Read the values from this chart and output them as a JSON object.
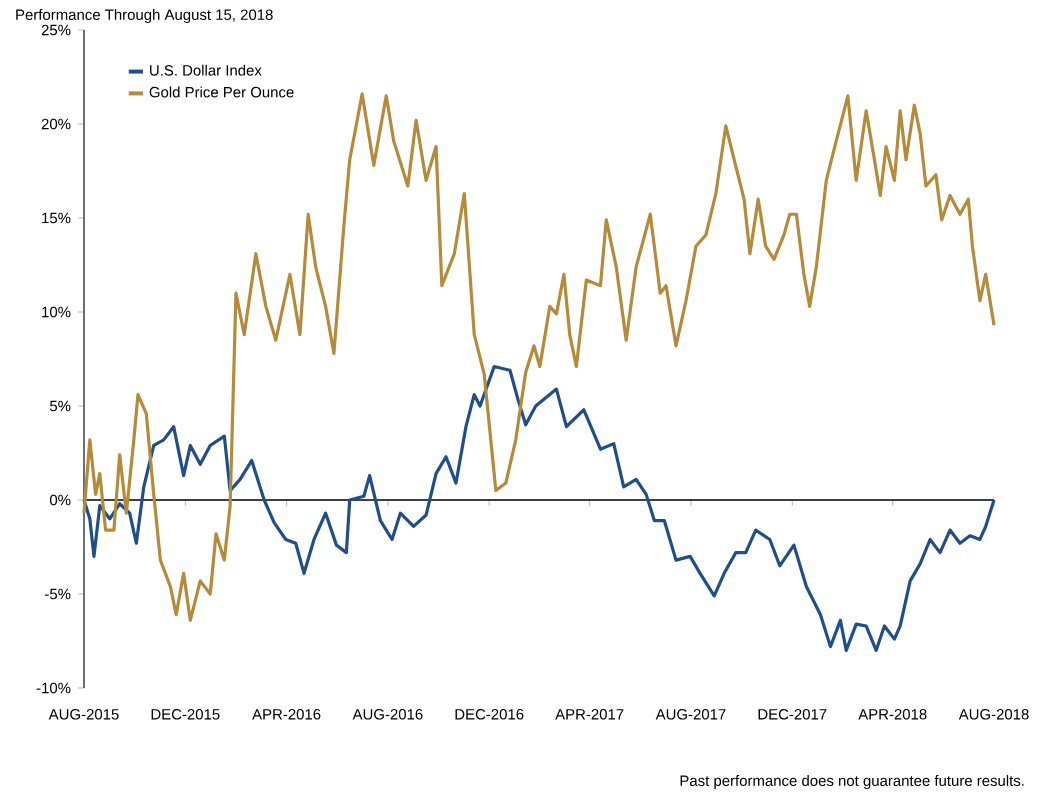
{
  "chart_data": {
    "type": "line",
    "title": "Performance Through August 15, 2018",
    "annotations": [
      "Past performance does not guarantee future results."
    ],
    "xlim": [
      "2015-08-15",
      "2018-08-15"
    ],
    "xticks": [
      {
        "value": "2015-08-15",
        "label": "AUG-2015"
      },
      {
        "value": "2015-12-15",
        "label": "DEC-2015"
      },
      {
        "value": "2016-04-15",
        "label": "APR-2016"
      },
      {
        "value": "2016-08-15",
        "label": "AUG-2016"
      },
      {
        "value": "2016-12-15",
        "label": "DEC-2016"
      },
      {
        "value": "2017-04-15",
        "label": "APR-2017"
      },
      {
        "value": "2017-08-15",
        "label": "AUG-2017"
      },
      {
        "value": "2017-12-15",
        "label": "DEC-2017"
      },
      {
        "value": "2018-04-15",
        "label": "APR-2018"
      },
      {
        "value": "2018-08-15",
        "label": "AUG-2018"
      }
    ],
    "ylim": [
      -10,
      25
    ],
    "yticks": [
      {
        "value": -10,
        "label": "-10%"
      },
      {
        "value": -5,
        "label": "-5%"
      },
      {
        "value": 0,
        "label": "0%"
      },
      {
        "value": 5,
        "label": "5%"
      },
      {
        "value": 10,
        "label": "10%"
      },
      {
        "value": 15,
        "label": "15%"
      },
      {
        "value": 20,
        "label": "20%"
      },
      {
        "value": 25,
        "label": "25%"
      }
    ],
    "legend": "top left",
    "series": [
      {
        "name": "U.S. Dollar Index",
        "color": "#1f4e89",
        "x": [
          "2015-08-15",
          "2015-08-22",
          "2015-08-27",
          "2015-09-03",
          "2015-09-15",
          "2015-09-27",
          "2015-10-09",
          "2015-10-17",
          "2015-10-26",
          "2015-11-07",
          "2015-11-19",
          "2015-12-01",
          "2015-12-13",
          "2015-12-21",
          "2016-01-02",
          "2016-01-14",
          "2016-01-31",
          "2016-02-07",
          "2016-02-19",
          "2016-03-04",
          "2016-03-19",
          "2016-03-31",
          "2016-04-14",
          "2016-04-26",
          "2016-05-06",
          "2016-05-18",
          "2016-06-01",
          "2016-06-14",
          "2016-06-26",
          "2016-06-30",
          "2016-07-17",
          "2016-07-24",
          "2016-08-06",
          "2016-08-20",
          "2016-08-30",
          "2016-09-15",
          "2016-09-30",
          "2016-10-12",
          "2016-10-24",
          "2016-11-05",
          "2016-11-17",
          "2016-11-27",
          "2016-12-04",
          "2016-12-21",
          "2017-01-09",
          "2017-01-19",
          "2017-01-28",
          "2017-02-09",
          "2017-03-06",
          "2017-03-18",
          "2017-04-08",
          "2017-04-28",
          "2017-05-14",
          "2017-05-26",
          "2017-06-10",
          "2017-06-22",
          "2017-07-02",
          "2017-07-14",
          "2017-07-28",
          "2017-08-14",
          "2017-08-26",
          "2017-09-12",
          "2017-09-24",
          "2017-10-08",
          "2017-10-20",
          "2017-11-01",
          "2017-11-18",
          "2017-11-30",
          "2017-12-17",
          "2018-01-01",
          "2018-01-18",
          "2018-01-30",
          "2018-02-11",
          "2018-02-18",
          "2018-03-02",
          "2018-03-14",
          "2018-03-26",
          "2018-04-05",
          "2018-04-17",
          "2018-04-24",
          "2018-05-06",
          "2018-05-18",
          "2018-05-30",
          "2018-06-11",
          "2018-06-23",
          "2018-07-05",
          "2018-07-17",
          "2018-07-29",
          "2018-08-05",
          "2018-08-15"
        ],
        "values": [
          0,
          -1,
          -3,
          -0.3,
          -1,
          -0.2,
          -0.7,
          -2.3,
          0.7,
          2.9,
          3.2,
          3.9,
          1.3,
          2.9,
          1.9,
          2.9,
          3.4,
          0.5,
          1.1,
          2.1,
          0,
          -1.2,
          -2.1,
          -2.3,
          -3.9,
          -2.1,
          -0.7,
          -2.4,
          -2.8,
          0,
          0.2,
          1.3,
          -1.1,
          -2.1,
          -0.7,
          -1.4,
          -0.8,
          1.4,
          2.3,
          0.9,
          3.9,
          5.6,
          5.0,
          7.1,
          6.9,
          5.3,
          4.0,
          5.0,
          5.9,
          3.9,
          4.8,
          2.7,
          3.0,
          0.7,
          1.1,
          0.3,
          -1.1,
          -1.1,
          -3.2,
          -3.0,
          -3.9,
          -5.1,
          -3.9,
          -2.8,
          -2.8,
          -1.6,
          -2.1,
          -3.5,
          -2.4,
          -4.6,
          -6.1,
          -7.8,
          -6.4,
          -8.0,
          -6.6,
          -6.7,
          -8.0,
          -6.7,
          -7.4,
          -6.7,
          -4.3,
          -3.4,
          -2.1,
          -2.8,
          -1.6,
          -2.3,
          -1.9,
          -2.1,
          -1.4,
          0
        ]
      },
      {
        "name": "Gold Price Per Ounce",
        "color": "#b58a3a",
        "x": [
          "2015-08-15",
          "2015-08-22",
          "2015-08-29",
          "2015-09-03",
          "2015-09-10",
          "2015-09-20",
          "2015-09-27",
          "2015-10-05",
          "2015-10-14",
          "2015-10-19",
          "2015-10-29",
          "2015-11-07",
          "2015-11-15",
          "2015-11-27",
          "2015-12-04",
          "2015-12-13",
          "2015-12-21",
          "2016-01-02",
          "2016-01-14",
          "2016-01-21",
          "2016-01-31",
          "2016-02-07",
          "2016-02-14",
          "2016-02-24",
          "2016-03-09",
          "2016-03-21",
          "2016-04-02",
          "2016-04-19",
          "2016-05-01",
          "2016-05-11",
          "2016-05-20",
          "2016-06-01",
          "2016-06-11",
          "2016-06-23",
          "2016-06-30",
          "2016-07-15",
          "2016-07-29",
          "2016-08-13",
          "2016-08-22",
          "2016-09-08",
          "2016-09-18",
          "2016-09-30",
          "2016-10-12",
          "2016-10-19",
          "2016-11-03",
          "2016-11-15",
          "2016-11-27",
          "2016-12-09",
          "2016-12-23",
          "2017-01-04",
          "2017-01-16",
          "2017-01-28",
          "2017-02-07",
          "2017-02-14",
          "2017-02-26",
          "2017-03-06",
          "2017-03-15",
          "2017-03-22",
          "2017-03-30",
          "2017-04-11",
          "2017-04-28",
          "2017-05-05",
          "2017-05-17",
          "2017-05-29",
          "2017-06-10",
          "2017-06-27",
          "2017-07-09",
          "2017-07-16",
          "2017-07-28",
          "2017-08-09",
          "2017-08-21",
          "2017-09-02",
          "2017-09-14",
          "2017-09-26",
          "2017-10-06",
          "2017-10-18",
          "2017-10-25",
          "2017-11-04",
          "2017-11-13",
          "2017-11-23",
          "2017-12-05",
          "2017-12-12",
          "2017-12-20",
          "2017-12-29",
          "2018-01-05",
          "2018-01-13",
          "2018-01-25",
          "2018-02-06",
          "2018-02-20",
          "2018-03-02",
          "2018-03-14",
          "2018-03-24",
          "2018-03-31",
          "2018-04-07",
          "2018-04-17",
          "2018-04-24",
          "2018-05-01",
          "2018-05-11",
          "2018-05-18",
          "2018-05-25",
          "2018-06-06",
          "2018-06-13",
          "2018-06-23",
          "2018-07-05",
          "2018-07-15",
          "2018-07-20",
          "2018-07-29",
          "2018-08-05",
          "2018-08-15"
        ],
        "values": [
          -0.7,
          3.2,
          0.3,
          1.4,
          -1.6,
          -1.6,
          2.4,
          -0.7,
          3.2,
          5.6,
          4.6,
          0.3,
          -3.2,
          -4.6,
          -6.1,
          -3.9,
          -6.4,
          -4.3,
          -5.0,
          -1.8,
          -3.2,
          -0.3,
          11.0,
          8.8,
          13.1,
          10.3,
          8.5,
          12.0,
          8.8,
          15.2,
          12.4,
          10.3,
          7.8,
          14.6,
          18.1,
          21.6,
          17.8,
          21.5,
          19.1,
          16.7,
          20.2,
          17.0,
          18.8,
          11.4,
          13.1,
          16.3,
          8.8,
          6.7,
          0.5,
          0.9,
          3.2,
          6.8,
          8.2,
          7.1,
          10.3,
          9.9,
          12.0,
          8.8,
          7.1,
          11.7,
          11.4,
          14.9,
          12.4,
          8.5,
          12.4,
          15.2,
          11.0,
          11.4,
          8.2,
          10.6,
          13.5,
          14.1,
          16.3,
          19.9,
          18.1,
          16.0,
          13.1,
          16.0,
          13.5,
          12.8,
          14.1,
          15.2,
          15.2,
          12.0,
          10.3,
          12.4,
          17.0,
          19.1,
          21.5,
          17.0,
          20.7,
          18.1,
          16.2,
          18.8,
          17.0,
          20.7,
          18.1,
          21.0,
          19.5,
          16.7,
          17.3,
          14.9,
          16.2,
          15.2,
          16.0,
          13.5,
          10.6,
          12.0,
          9.3
        ]
      }
    ]
  }
}
